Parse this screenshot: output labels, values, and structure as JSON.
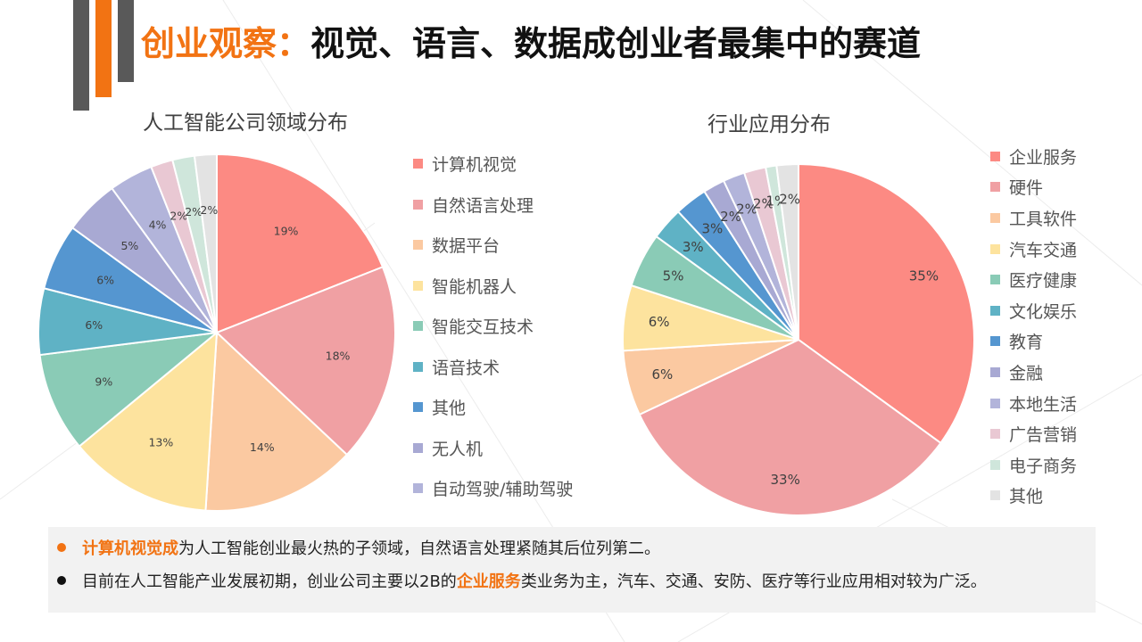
{
  "colors": {
    "accent": "#f27313",
    "bar_gray": "#595959",
    "note_bg": "#f2f2f2",
    "palette": [
      "#fc8a83",
      "#f0a0a3",
      "#fbc9a1",
      "#fde39e",
      "#8acbb6",
      "#5fb2c5",
      "#5596d0",
      "#a8a9d3",
      "#b2b4da",
      "#e9c8d3",
      "#cfe6db",
      "#e3e3e3"
    ]
  },
  "header": {
    "title_highlight": "创业观察：",
    "title_rest": "视觉、语言、数据成创业者最集中的赛道"
  },
  "chart_data": [
    {
      "type": "pie",
      "title": "人工智能公司领域分布",
      "labels": [
        "计算机视觉",
        "自然语言处理",
        "数据平台",
        "智能机器人",
        "智能交互技术",
        "语音技术",
        "其他",
        "无人机",
        "自动驾驶/辅助驾驶",
        "",
        "",
        ""
      ],
      "values": [
        19,
        18,
        14,
        13,
        9,
        6,
        6,
        5,
        4,
        2,
        2,
        2
      ],
      "value_labels": [
        "19%",
        "18%",
        "14%",
        "13%",
        "9%",
        "6%",
        "6%",
        "5%",
        "4%",
        "2%",
        "2%",
        "2%"
      ],
      "legend_placement": "right"
    },
    {
      "type": "pie",
      "title": "行业应用分布",
      "labels": [
        "企业服务",
        "硬件",
        "工具软件",
        "汽车交通",
        "医疗健康",
        "文化娱乐",
        "教育",
        "金融",
        "本地生活",
        "广告营销",
        "电子商务",
        "其他"
      ],
      "values": [
        35,
        33,
        6,
        6,
        5,
        3,
        3,
        2,
        2,
        2,
        1,
        2
      ],
      "value_labels": [
        "35%",
        "33%",
        "6%",
        "6%",
        "5%",
        "3%",
        "3%",
        "2%",
        "2%",
        "2%",
        "1%",
        "2%"
      ],
      "legend_placement": "right"
    }
  ],
  "notes": [
    {
      "highlight": "计算机视觉成",
      "text": "为人工智能创业最火热的子领域，自然语言处理紧随其后位列第二。"
    },
    {
      "prefix": "目前在人工智能产业发展初期，创业公司主要以2B的",
      "highlight": "企业服务",
      "suffix": "类业务为主，汽车、交通、安防、医疗等行业应用相对较为广泛。"
    }
  ]
}
